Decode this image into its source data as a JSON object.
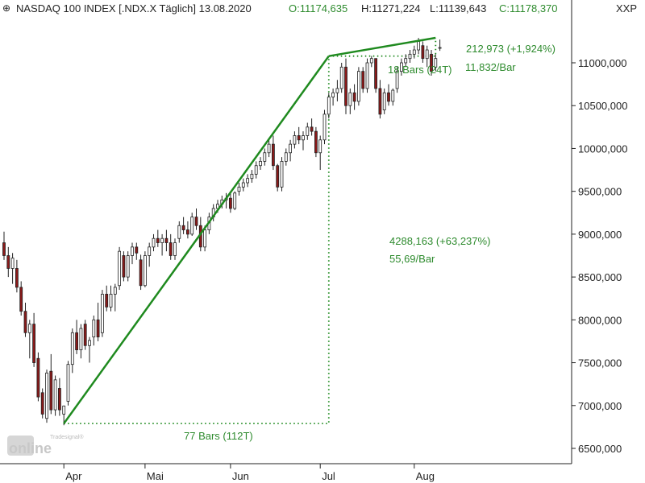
{
  "header": {
    "title": "NASDAQ 100 INDEX [.NDX.X  Täglich] 13.08.2020",
    "open": "O:11174,635",
    "high": "H:11271,224",
    "low": "L:11139,643",
    "close": "C:11178,370",
    "symbol": "XXP"
  },
  "colors": {
    "up": "#ffffff",
    "down": "#8b1a1a",
    "wick": "#222222",
    "trend": "#1f8a1f",
    "annotation": "#2e8b2e",
    "axis": "#222222"
  },
  "annotations": {
    "big_move": "4288,163 (+63,237%)",
    "big_rate": "55,69/Bar",
    "big_bars": "77 Bars (112T)",
    "small_move": "212,973 (+1,924%)",
    "small_bars": "18 Bars (24T)",
    "small_rate": "11,832/Bar"
  },
  "logo": {
    "top": "Tradesignal®",
    "main": "online"
  },
  "chart_data": {
    "type": "candlestick",
    "title": "NASDAQ 100 INDEX [.NDX.X  Täglich] 13.08.2020",
    "ylim": [
      6400,
      11400
    ],
    "y_ticks": [
      "6500,000",
      "7000,000",
      "7500,000",
      "8000,000",
      "8500,000",
      "9000,000",
      "9500,000",
      "10000,000",
      "10500,000",
      "11000,000"
    ],
    "y_tick_values": [
      6500,
      7000,
      7500,
      8000,
      8500,
      9000,
      9500,
      10000,
      10500,
      11000
    ],
    "x_labels": [
      "Apr",
      "Mai",
      "Jun",
      "Jul",
      "Aug"
    ],
    "x_label_index": [
      14,
      33,
      53,
      74,
      96
    ],
    "candles": [
      [
        8900,
        9030,
        8700,
        8750
      ],
      [
        8750,
        8850,
        8500,
        8600
      ],
      [
        8600,
        8780,
        8420,
        8720
      ],
      [
        8600,
        8700,
        8320,
        8380
      ],
      [
        8380,
        8450,
        8050,
        8100
      ],
      [
        8100,
        8200,
        7800,
        7850
      ],
      [
        7850,
        8000,
        7550,
        7950
      ],
      [
        7950,
        8080,
        7450,
        7500
      ],
      [
        7550,
        7620,
        7050,
        7100
      ],
      [
        7150,
        7200,
        6850,
        6900
      ],
      [
        6850,
        7420,
        6800,
        7380
      ],
      [
        7400,
        7600,
        6900,
        6950
      ],
      [
        6950,
        7350,
        6880,
        7300
      ],
      [
        7200,
        7320,
        6880,
        6950
      ],
      [
        6900,
        7000,
        6770,
        6995
      ],
      [
        7050,
        7520,
        7000,
        7480
      ],
      [
        7480,
        7900,
        7380,
        7850
      ],
      [
        7850,
        8000,
        7600,
        7650
      ],
      [
        7650,
        7950,
        7550,
        7900
      ],
      [
        7950,
        8000,
        7650,
        7700
      ],
      [
        7700,
        7800,
        7500,
        7760
      ],
      [
        7800,
        8050,
        7700,
        8000
      ],
      [
        8000,
        8200,
        7750,
        7800
      ],
      [
        7850,
        8350,
        7800,
        8300
      ],
      [
        8300,
        8400,
        8100,
        8150
      ],
      [
        8150,
        8400,
        8100,
        8300
      ],
      [
        8300,
        8420,
        8100,
        8380
      ],
      [
        8400,
        8850,
        8350,
        8800
      ],
      [
        8750,
        8800,
        8450,
        8500
      ],
      [
        8500,
        8800,
        8450,
        8750
      ],
      [
        8750,
        8900,
        8650,
        8850
      ],
      [
        8850,
        8900,
        8700,
        8780
      ],
      [
        8700,
        8760,
        8350,
        8400
      ],
      [
        8400,
        8800,
        8380,
        8750
      ],
      [
        8750,
        8900,
        8620,
        8850
      ],
      [
        8850,
        9000,
        8800,
        8950
      ],
      [
        8950,
        9050,
        8850,
        8900
      ],
      [
        8900,
        9000,
        8750,
        8950
      ],
      [
        8950,
        9050,
        8800,
        8900
      ],
      [
        8900,
        9000,
        8700,
        8750
      ],
      [
        8750,
        8950,
        8700,
        8900
      ],
      [
        8950,
        9150,
        8900,
        9100
      ],
      [
        9100,
        9200,
        9000,
        9050
      ],
      [
        9050,
        9150,
        8950,
        9000
      ],
      [
        9000,
        9250,
        8980,
        9200
      ],
      [
        9200,
        9300,
        9050,
        9100
      ],
      [
        9100,
        9200,
        8800,
        8850
      ],
      [
        8850,
        9100,
        8800,
        9050
      ],
      [
        9050,
        9250,
        9000,
        9200
      ],
      [
        9200,
        9350,
        9150,
        9300
      ],
      [
        9300,
        9400,
        9250,
        9350
      ],
      [
        9350,
        9450,
        9300,
        9400
      ],
      [
        9400,
        9480,
        9300,
        9420
      ],
      [
        9420,
        9500,
        9250,
        9300
      ],
      [
        9300,
        9500,
        9280,
        9480
      ],
      [
        9500,
        9600,
        9450,
        9550
      ],
      [
        9550,
        9650,
        9500,
        9600
      ],
      [
        9600,
        9700,
        9550,
        9650
      ],
      [
        9650,
        9750,
        9600,
        9700
      ],
      [
        9700,
        9850,
        9650,
        9800
      ],
      [
        9800,
        9900,
        9750,
        9850
      ],
      [
        9850,
        10000,
        9800,
        9950
      ],
      [
        9950,
        10100,
        9900,
        10050
      ],
      [
        10050,
        10150,
        9750,
        9800
      ],
      [
        9800,
        9820,
        9500,
        9550
      ],
      [
        9550,
        9900,
        9500,
        9850
      ],
      [
        9850,
        10000,
        9800,
        9950
      ],
      [
        9950,
        10100,
        9850,
        10050
      ],
      [
        10050,
        10200,
        10000,
        10150
      ],
      [
        10150,
        10250,
        10050,
        10100
      ],
      [
        10100,
        10200,
        9980,
        10150
      ],
      [
        10150,
        10300,
        10100,
        10250
      ],
      [
        10250,
        10350,
        10150,
        10200
      ],
      [
        10200,
        10250,
        9900,
        9950
      ],
      [
        9950,
        10150,
        9750,
        10100
      ],
      [
        10100,
        10450,
        10050,
        10400
      ],
      [
        10400,
        10650,
        10350,
        10600
      ],
      [
        10600,
        10700,
        10500,
        10650
      ],
      [
        10650,
        10800,
        10550,
        10700
      ],
      [
        10700,
        11000,
        10650,
        10950
      ],
      [
        10950,
        11050,
        10400,
        10500
      ],
      [
        10500,
        10700,
        10400,
        10650
      ],
      [
        10650,
        10750,
        10450,
        10550
      ],
      [
        10550,
        10950,
        10500,
        10900
      ],
      [
        10900,
        10950,
        10650,
        10700
      ],
      [
        10700,
        11050,
        10650,
        11000
      ],
      [
        11000,
        11080,
        10950,
        11050
      ],
      [
        11050,
        11050,
        10650,
        10700
      ],
      [
        10700,
        10800,
        10350,
        10400
      ],
      [
        10450,
        10700,
        10400,
        10650
      ],
      [
        10650,
        10750,
        10500,
        10550
      ],
      [
        10550,
        10700,
        10500,
        10680
      ],
      [
        10700,
        10950,
        10650,
        10900
      ],
      [
        10900,
        11050,
        10850,
        11000
      ],
      [
        11000,
        11100,
        10950,
        11050
      ],
      [
        11050,
        11150,
        11000,
        11100
      ],
      [
        11100,
        11200,
        11050,
        11150
      ],
      [
        11150,
        11290,
        11100,
        11250
      ],
      [
        11200,
        11250,
        11000,
        11050
      ],
      [
        11050,
        11200,
        10950,
        11150
      ],
      [
        11100,
        11150,
        10850,
        10900
      ],
      [
        10950,
        11100,
        10900,
        11050
      ],
      [
        11174.635,
        11271.224,
        11139.643,
        11178.37
      ]
    ],
    "trend_lines": [
      {
        "start": {
          "index": 14,
          "value": 6790
        },
        "end": {
          "index": 76,
          "value": 11078
        }
      },
      {
        "start": {
          "index": 76,
          "value": 11078
        },
        "end": {
          "index": 101,
          "value": 11291
        }
      }
    ],
    "dotted_lines": [
      {
        "start": {
          "index": 14,
          "value": 6790
        },
        "corner": {
          "index": 76,
          "value": 6790
        },
        "end": {
          "index": 76,
          "value": 11078
        }
      },
      {
        "start": {
          "index": 76,
          "value": 11078
        },
        "corner": {
          "index": 101,
          "value": 11078
        },
        "end": {
          "index": 101,
          "value": 11291
        }
      }
    ]
  }
}
